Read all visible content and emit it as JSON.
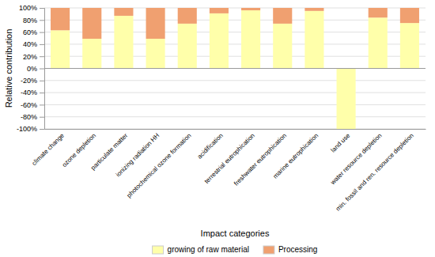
{
  "chart_data": {
    "type": "bar",
    "stacked": true,
    "categories": [
      "climate change",
      "ozone depletion",
      "particulate matter",
      "ionizing radiation HH",
      "photochemical ozone formation",
      "acidification",
      "terrestrial eutrophication",
      "freshwater eutrophication",
      "marine eutrophication",
      "land use",
      "water resource depletion",
      "min. fossil and ren. resource depletion"
    ],
    "series": [
      {
        "name": "growing of raw material",
        "color": "#ffffaa",
        "values": [
          63,
          49,
          87,
          49,
          74,
          91,
          96,
          74,
          95,
          -100,
          84,
          75
        ]
      },
      {
        "name": "Processing",
        "color": "#f0a070",
        "values": [
          37,
          51,
          13,
          51,
          26,
          9,
          4,
          26,
          5,
          0,
          16,
          25
        ]
      }
    ],
    "xlabel": "Impact categories",
    "ylabel": "Relative contribution",
    "ylim": [
      -100,
      100
    ],
    "yticks": [
      {
        "value": -100,
        "label": "-100%"
      },
      {
        "value": -80,
        "label": "-80%"
      },
      {
        "value": -60,
        "label": "-60%"
      },
      {
        "value": -40,
        "label": "-40%"
      },
      {
        "value": -20,
        "label": "-20%"
      },
      {
        "value": 0,
        "label": "0%"
      },
      {
        "value": 20,
        "label": "20%"
      },
      {
        "value": 40,
        "label": "40%"
      },
      {
        "value": 60,
        "label": "60%"
      },
      {
        "value": 80,
        "label": "80%"
      },
      {
        "value": 100,
        "label": "100%"
      }
    ],
    "grid": true,
    "legend": "bottom"
  }
}
